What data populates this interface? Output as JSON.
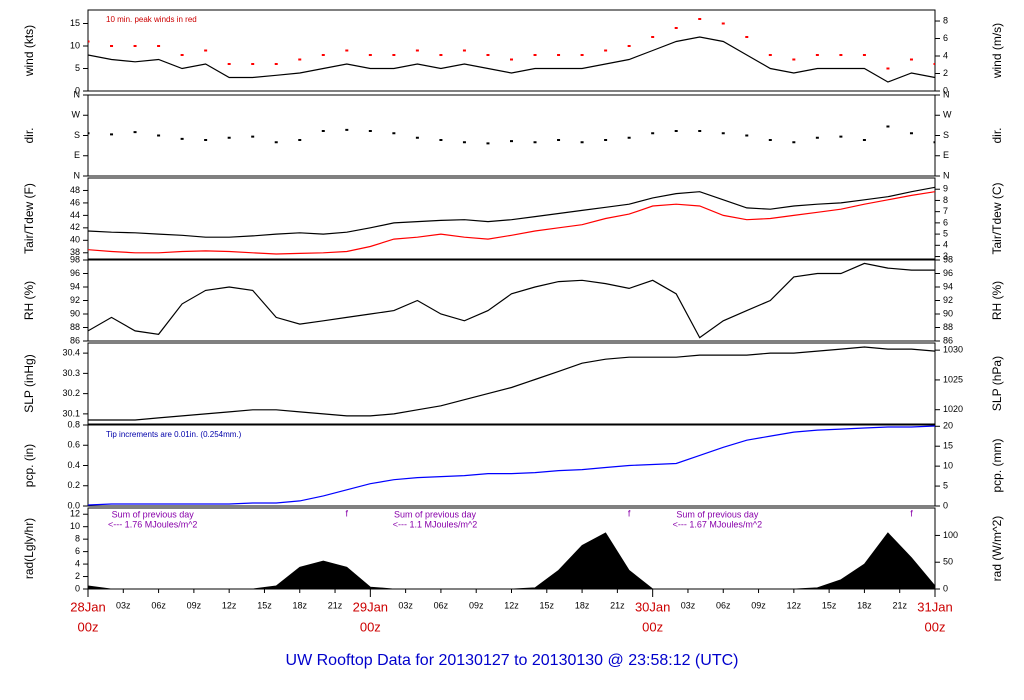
{
  "title": "UW Rooftop Data for 20130127  to  20130130 @ 23:58:12  (UTC)",
  "time_axis": {
    "x": [
      0,
      2,
      4,
      6,
      8,
      10,
      12,
      14,
      16,
      18,
      20,
      22,
      24,
      26,
      28,
      30,
      32,
      34,
      36,
      38,
      40,
      42,
      44,
      46,
      48,
      50,
      52,
      54,
      56,
      58,
      60,
      62,
      64,
      66,
      68,
      70,
      72
    ],
    "xlim": [
      0,
      72
    ],
    "xticks": [
      {
        "value": 0,
        "label": "00z"
      },
      {
        "value": 3,
        "label": "03z"
      },
      {
        "value": 6,
        "label": "06z"
      },
      {
        "value": 9,
        "label": "09z"
      },
      {
        "value": 12,
        "label": "12z"
      },
      {
        "value": 15,
        "label": "15z"
      },
      {
        "value": 18,
        "label": "18z"
      },
      {
        "value": 21,
        "label": "21z"
      },
      {
        "value": 24,
        "label": "00z"
      },
      {
        "value": 27,
        "label": "03z"
      },
      {
        "value": 30,
        "label": "06z"
      },
      {
        "value": 33,
        "label": "09z"
      },
      {
        "value": 36,
        "label": "12z"
      },
      {
        "value": 39,
        "label": "15z"
      },
      {
        "value": 42,
        "label": "18z"
      },
      {
        "value": 45,
        "label": "21z"
      },
      {
        "value": 48,
        "label": "00z"
      },
      {
        "value": 51,
        "label": "03z"
      },
      {
        "value": 54,
        "label": "06z"
      },
      {
        "value": 57,
        "label": "09z"
      },
      {
        "value": 60,
        "label": "12z"
      },
      {
        "value": 63,
        "label": "15z"
      },
      {
        "value": 66,
        "label": "18z"
      },
      {
        "value": 69,
        "label": "21z"
      },
      {
        "value": 72,
        "label": "00z"
      }
    ],
    "dates": [
      {
        "value": 0,
        "label": "28Jan"
      },
      {
        "value": 24,
        "label": "29Jan"
      },
      {
        "value": 48,
        "label": "30Jan"
      },
      {
        "value": 72,
        "label": "31Jan"
      }
    ]
  },
  "chart_data": [
    {
      "type": "line",
      "ylabel": "wind (kts)",
      "y2label": "wind (m/s)",
      "ylim": [
        0,
        18
      ],
      "yticks": [
        0,
        5,
        10,
        15
      ],
      "y2lim": [
        0,
        9.26
      ],
      "y2ticks": [
        0,
        2,
        4,
        6,
        8
      ],
      "note": "10 min. peak winds in red",
      "note_color": "#cc0000",
      "series": [
        {
          "color": "#000000",
          "mode": "line",
          "values": [
            8,
            7,
            6.5,
            7,
            5,
            6,
            3,
            3,
            3.5,
            4,
            5,
            6,
            5,
            5,
            6,
            5,
            6,
            5,
            4,
            5,
            5,
            5,
            6,
            7,
            9,
            11,
            12,
            11,
            8,
            5,
            4,
            5,
            5,
            5,
            2,
            4,
            3
          ]
        },
        {
          "color": "#ff0000",
          "mode": "markers",
          "values": [
            11,
            10,
            10,
            10,
            8,
            9,
            6,
            6,
            6,
            7,
            8,
            9,
            8,
            8,
            9,
            8,
            9,
            8,
            7,
            8,
            8,
            8,
            9,
            10,
            12,
            14,
            16,
            15,
            12,
            8,
            7,
            8,
            8,
            8,
            5,
            7,
            6
          ]
        }
      ]
    },
    {
      "type": "scatter",
      "ylabel": "dir.",
      "y2label": "dir.",
      "ylim": [
        0,
        360
      ],
      "yticks": [
        {
          "value": 0,
          "label": "N"
        },
        {
          "value": 90,
          "label": "E"
        },
        {
          "value": 180,
          "label": "S"
        },
        {
          "value": 270,
          "label": "W"
        },
        {
          "value": 360,
          "label": "N"
        }
      ],
      "y2lim": [
        0,
        360
      ],
      "y2ticks": [
        {
          "value": 0,
          "label": "N"
        },
        {
          "value": 90,
          "label": "E"
        },
        {
          "value": 180,
          "label": "S"
        },
        {
          "value": 270,
          "label": "W"
        },
        {
          "value": 360,
          "label": "N"
        }
      ],
      "series": [
        {
          "color": "#000000",
          "mode": "markers",
          "values": [
            190,
            185,
            195,
            180,
            165,
            160,
            170,
            175,
            150,
            160,
            200,
            205,
            200,
            190,
            170,
            160,
            150,
            145,
            155,
            150,
            160,
            150,
            160,
            170,
            190,
            200,
            200,
            190,
            180,
            160,
            150,
            170,
            175,
            160,
            220,
            190,
            150
          ]
        }
      ]
    },
    {
      "type": "line",
      "ylabel": "Tair/Tdew (F)",
      "y2label": "Tair/Tdew (C)",
      "ylim": [
        37,
        50
      ],
      "yticks": [
        38,
        40,
        42,
        44,
        46,
        48
      ],
      "y2lim": [
        2.78,
        10
      ],
      "y2ticks": [
        3,
        4,
        5,
        6,
        7,
        8,
        9
      ],
      "series": [
        {
          "color": "#000000",
          "mode": "line",
          "values": [
            41.5,
            41.3,
            41.2,
            41.0,
            40.8,
            40.5,
            40.5,
            40.7,
            41.0,
            41.2,
            41.0,
            41.3,
            42.0,
            42.8,
            43.0,
            43.2,
            43.3,
            43.0,
            43.3,
            43.8,
            44.3,
            44.8,
            45.3,
            45.8,
            46.8,
            47.5,
            47.8,
            46.5,
            45.2,
            45.0,
            45.5,
            45.8,
            46.0,
            46.5,
            47.0,
            47.8,
            48.5
          ]
        },
        {
          "color": "#ff0000",
          "mode": "line",
          "values": [
            38.5,
            38.2,
            38.0,
            38.0,
            38.2,
            38.3,
            38.2,
            38.0,
            37.8,
            37.9,
            38.0,
            38.2,
            39.0,
            40.2,
            40.5,
            41.0,
            40.5,
            40.2,
            40.8,
            41.5,
            42.0,
            42.5,
            43.5,
            44.2,
            45.5,
            45.8,
            45.5,
            44.0,
            43.3,
            43.5,
            44.0,
            44.5,
            45.0,
            45.8,
            46.5,
            47.2,
            47.8
          ]
        }
      ]
    },
    {
      "type": "line",
      "ylabel": "RH (%)",
      "y2label": "RH (%)",
      "ylim": [
        86,
        98
      ],
      "yticks": [
        86,
        88,
        90,
        92,
        94,
        96,
        98
      ],
      "y2lim": [
        86,
        98
      ],
      "y2ticks": [
        86,
        88,
        90,
        92,
        94,
        96,
        98
      ],
      "series": [
        {
          "color": "#000000",
          "mode": "line",
          "values": [
            87.5,
            89.5,
            87.5,
            87.0,
            91.5,
            93.5,
            94.0,
            93.5,
            89.5,
            88.5,
            89.0,
            89.5,
            90.0,
            90.5,
            92.0,
            90.0,
            89.0,
            90.5,
            93.0,
            94.0,
            94.8,
            95.0,
            94.5,
            93.8,
            95.0,
            93.0,
            86.5,
            89.0,
            90.5,
            92.0,
            95.5,
            96.0,
            96.0,
            97.5,
            96.8,
            96.5,
            96.5
          ]
        }
      ]
    },
    {
      "type": "line",
      "ylabel": "SLP (inHg)",
      "y2label": "SLP (hPa)",
      "ylim": [
        30.05,
        30.45
      ],
      "yticks": [
        30.1,
        30.2,
        30.3,
        30.4
      ],
      "y2lim": [
        1017.6,
        1031.2
      ],
      "y2ticks": [
        1020,
        1025,
        1030
      ],
      "series": [
        {
          "color": "#000000",
          "mode": "line",
          "values": [
            30.07,
            30.07,
            30.07,
            30.08,
            30.09,
            30.1,
            30.11,
            30.12,
            30.12,
            30.11,
            30.1,
            30.09,
            30.09,
            30.1,
            30.12,
            30.14,
            30.17,
            30.2,
            30.23,
            30.27,
            30.31,
            30.35,
            30.37,
            30.38,
            30.38,
            30.38,
            30.39,
            30.39,
            30.39,
            30.4,
            30.4,
            30.41,
            30.42,
            30.43,
            30.42,
            30.42,
            30.41
          ]
        }
      ]
    },
    {
      "type": "line",
      "ylabel": "pcp. (in)",
      "y2label": "pcp. (mm)",
      "ylim": [
        0,
        0.8
      ],
      "yticks": [
        {
          "value": 0,
          "label": "0.0"
        },
        0.2,
        0.4,
        0.6,
        0.8
      ],
      "y2lim": [
        0,
        20.32
      ],
      "y2ticks": [
        0,
        5,
        10,
        15,
        20
      ],
      "note": "Tip increments are 0.01in. (0.254mm.)",
      "note_color": "#0000aa",
      "series": [
        {
          "color": "#0000ff",
          "mode": "line",
          "values": [
            0.01,
            0.02,
            0.02,
            0.02,
            0.02,
            0.02,
            0.02,
            0.03,
            0.03,
            0.05,
            0.1,
            0.16,
            0.22,
            0.26,
            0.28,
            0.29,
            0.3,
            0.32,
            0.32,
            0.33,
            0.35,
            0.36,
            0.38,
            0.4,
            0.41,
            0.42,
            0.5,
            0.58,
            0.65,
            0.69,
            0.73,
            0.75,
            0.76,
            0.77,
            0.78,
            0.78,
            0.79
          ]
        }
      ]
    },
    {
      "type": "area",
      "ylabel": "rad(Lgly/hr)",
      "y2label": "rad (W/m^2)",
      "ylim": [
        0,
        13
      ],
      "yticks": [
        0,
        2,
        4,
        6,
        8,
        10,
        12
      ],
      "y2lim": [
        0,
        151.2
      ],
      "y2ticks": [
        0,
        50,
        100
      ],
      "day_sums": [
        {
          "title": "Sum of previous day",
          "text": "<--- 1.76 MJoules/m^2",
          "mark": "f"
        },
        {
          "title": "Sum of previous day",
          "text": "<--- 1.1 MJoules/m^2",
          "mark": "f"
        },
        {
          "title": "Sum of previous day",
          "text": "<--- 1.67 MJoules/m^2",
          "mark": "f"
        }
      ],
      "series": [
        {
          "color": "#000000",
          "mode": "area",
          "values": [
            0.5,
            0,
            0,
            0,
            0,
            0,
            0,
            0,
            0.5,
            3.5,
            4.5,
            3.5,
            0.3,
            0,
            0,
            0,
            0,
            0,
            0,
            0.2,
            3,
            7,
            9,
            3,
            0,
            0,
            0,
            0,
            0,
            0,
            0,
            0.2,
            1.5,
            4,
            9,
            5,
            0.5
          ]
        }
      ]
    }
  ]
}
